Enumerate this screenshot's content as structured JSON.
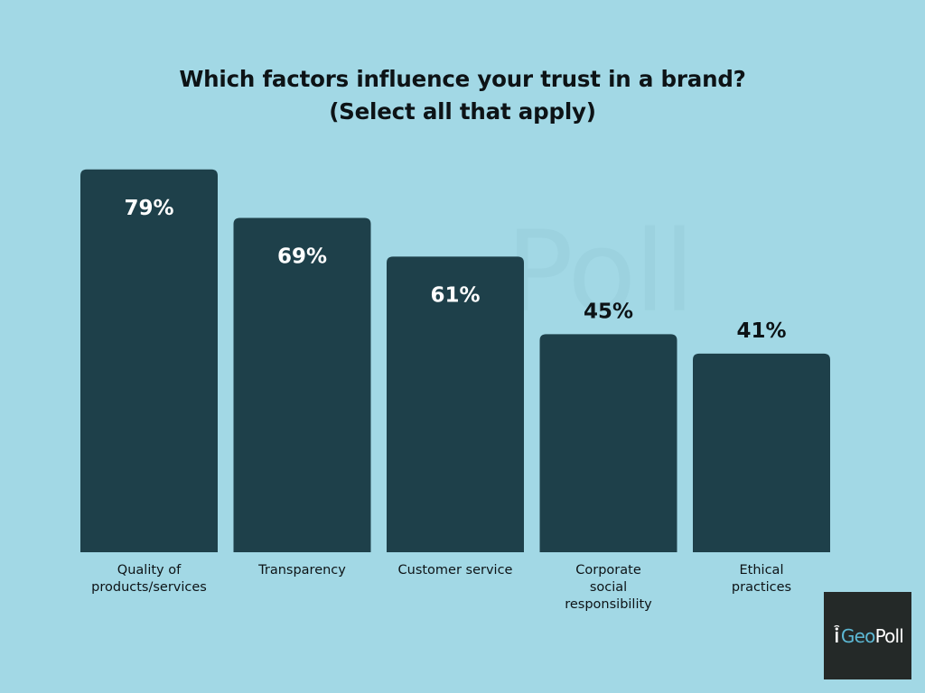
{
  "chart_data": {
    "type": "bar",
    "title": [
      "Which factors influence your trust in a brand?",
      "(Select all that apply)"
    ],
    "categories": [
      [
        "Quality of",
        "products/services"
      ],
      [
        "Transparency"
      ],
      [
        "Customer service"
      ],
      [
        "Corporate",
        "social",
        "responsibility"
      ],
      [
        "Ethical",
        "practices"
      ]
    ],
    "values": [
      79,
      69,
      61,
      45,
      41
    ],
    "value_labels": [
      "79%",
      "69%",
      "61%",
      "45%",
      "41%"
    ],
    "value_format": "percent",
    "ylim": [
      0,
      100
    ],
    "grid": false,
    "legend": "none",
    "colors": {
      "background": "#a2d8e5",
      "bar": "#1e404a",
      "label_on_bar": "#ffffff",
      "label_above_bar": "#0d1316",
      "category_text": "#0d1316"
    }
  },
  "watermark": "Poll",
  "logo": {
    "part1": "i",
    "part2": "Geo",
    "part3": "Poll",
    "icon": "signal-icon"
  }
}
